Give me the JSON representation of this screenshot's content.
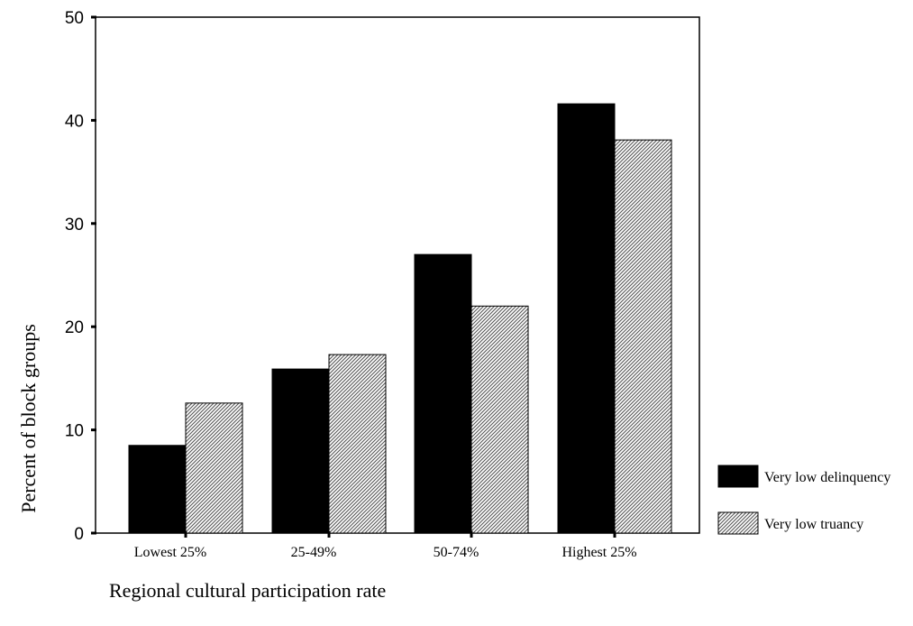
{
  "chart_data": {
    "type": "bar",
    "categories": [
      "Lowest 25%",
      "25-49%",
      "50-74%",
      "Highest 25%"
    ],
    "series": [
      {
        "name": "Very low delinquency",
        "values": [
          8.5,
          15.9,
          27,
          41.6
        ],
        "color": "#000000",
        "pattern": "solid"
      },
      {
        "name": "Very low truancy",
        "values": [
          12.6,
          17.3,
          22,
          38.1
        ],
        "color": "#888888",
        "pattern": "hatched"
      }
    ],
    "xlabel": "Regional cultural participation rate",
    "ylabel": "Percent of block groups",
    "ylim": [
      0,
      50
    ],
    "yticks": [
      0,
      10,
      20,
      30,
      40,
      50
    ],
    "grid": false,
    "legend_position": "right"
  }
}
